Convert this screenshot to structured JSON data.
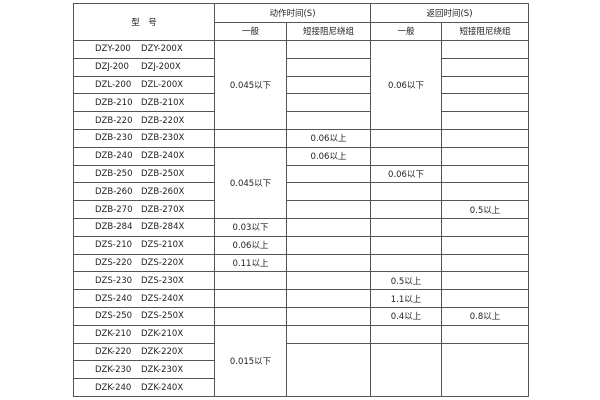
{
  "header": {
    "model": "型　号",
    "action_time": "动作时间(S)",
    "return_time": "返回时间(S)",
    "general": "一般",
    "short_winding": "短接阻尼绕组"
  },
  "rows": [
    {
      "model_a": "DZY-200",
      "model_b": "DZY-200X",
      "cells": [
        {
          "text": "0.045以下",
          "rowspan": 5
        },
        {
          "text": ""
        },
        {
          "text": "0.06以下",
          "rowspan": 5
        },
        {
          "text": ""
        }
      ]
    },
    {
      "model_a": "DZJ-200",
      "model_b": "DZJ-200X",
      "cells": [
        null,
        {
          "text": ""
        },
        null,
        {
          "text": ""
        }
      ]
    },
    {
      "model_a": "DZL-200",
      "model_b": "DZL-200X",
      "cells": [
        null,
        {
          "text": ""
        },
        null,
        {
          "text": ""
        }
      ]
    },
    {
      "model_a": "DZB-210",
      "model_b": "DZB-210X",
      "cells": [
        null,
        {
          "text": ""
        },
        null,
        {
          "text": ""
        }
      ]
    },
    {
      "model_a": "DZB-220",
      "model_b": "DZB-220X",
      "cells": [
        null,
        {
          "text": ""
        },
        null,
        {
          "text": ""
        }
      ]
    },
    {
      "model_a": "DZB-230",
      "model_b": "DZB-230X",
      "cells": [
        {
          "text": ""
        },
        {
          "text": "0.06以上"
        },
        {
          "text": ""
        },
        {
          "text": ""
        }
      ]
    },
    {
      "model_a": "DZB-240",
      "model_b": "DZB-240X",
      "cells": [
        {
          "text": "0.045以下",
          "rowspan": 4
        },
        {
          "text": "0.06以上"
        },
        {
          "text": ""
        },
        {
          "text": ""
        }
      ]
    },
    {
      "model_a": "DZB-250",
      "model_b": "DZB-250X",
      "cells": [
        null,
        {
          "text": ""
        },
        {
          "text": "0.06以下"
        },
        {
          "text": ""
        }
      ]
    },
    {
      "model_a": "DZB-260",
      "model_b": "DZB-260X",
      "cells": [
        null,
        {
          "text": ""
        },
        {
          "text": ""
        },
        {
          "text": ""
        }
      ]
    },
    {
      "model_a": "DZB-270",
      "model_b": "DZB-270X",
      "cells": [
        null,
        {
          "text": ""
        },
        {
          "text": ""
        },
        {
          "text": "0.5以上"
        }
      ]
    },
    {
      "model_a": "DZB-284",
      "model_b": "DZB-284X",
      "cells": [
        {
          "text": "0.03以下"
        },
        {
          "text": ""
        },
        {
          "text": ""
        },
        {
          "text": ""
        }
      ]
    },
    {
      "model_a": "DZS-210",
      "model_b": "DZS-210X",
      "cells": [
        {
          "text": "0.06以上"
        },
        {
          "text": ""
        },
        {
          "text": ""
        },
        {
          "text": ""
        }
      ]
    },
    {
      "model_a": "DZS-220",
      "model_b": "DZS-220X",
      "cells": [
        {
          "text": "0.11以上"
        },
        {
          "text": ""
        },
        {
          "text": ""
        },
        {
          "text": ""
        }
      ]
    },
    {
      "model_a": "DZS-230",
      "model_b": "DZS-230X",
      "cells": [
        {
          "text": ""
        },
        {
          "text": ""
        },
        {
          "text": "0.5以上"
        },
        {
          "text": ""
        }
      ]
    },
    {
      "model_a": "DZS-240",
      "model_b": "DZS-240X",
      "cells": [
        {
          "text": ""
        },
        {
          "text": ""
        },
        {
          "text": "1.1以上"
        },
        {
          "text": ""
        }
      ]
    },
    {
      "model_a": "DZS-250",
      "model_b": "DZS-250X",
      "cells": [
        {
          "text": ""
        },
        {
          "text": ""
        },
        {
          "text": "0.4以上"
        },
        {
          "text": "0.8以上"
        }
      ]
    },
    {
      "model_a": "DZK-210",
      "model_b": "DZK-210X",
      "cells": [
        {
          "text": "0.015以下",
          "rowspan": 4
        },
        {
          "text": ""
        },
        {
          "text": ""
        },
        {
          "text": ""
        }
      ]
    },
    {
      "model_a": "DZK-220",
      "model_b": "DZK-220X",
      "cells": [
        null,
        {
          "text": "",
          "rowspan": 3
        },
        {
          "text": "",
          "rowspan": 3
        },
        {
          "text": "",
          "rowspan": 3
        }
      ]
    },
    {
      "model_a": "DZK-230",
      "model_b": "DZK-230X",
      "cells": [
        null,
        null,
        null,
        null
      ]
    },
    {
      "model_a": "DZK-240",
      "model_b": "DZK-240X",
      "cells": [
        null,
        null,
        null,
        null
      ]
    }
  ]
}
